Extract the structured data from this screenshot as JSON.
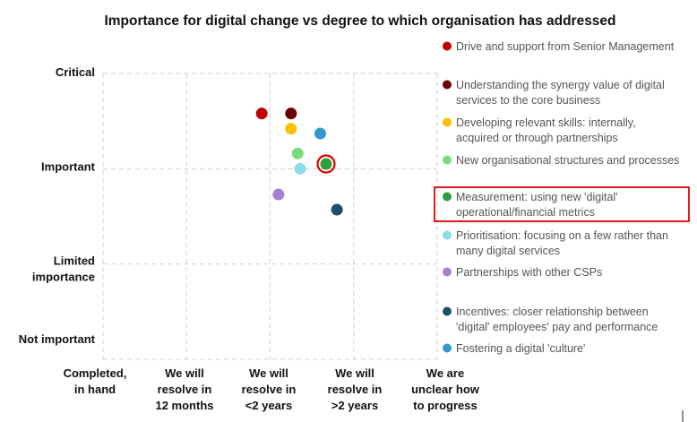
{
  "chart_data": {
    "type": "scatter",
    "title": "Importance for digital change vs degree to which organisation has addressed",
    "x_categories": [
      "Completed, in hand",
      "We will resolve in 12 months",
      "We will resolve in <2 years",
      "We will resolve in >2 years",
      "We are unclear how to progress"
    ],
    "y_categories": [
      "Not important",
      "Limited importance",
      "Important",
      "Critical"
    ],
    "xlim": [
      0,
      4
    ],
    "ylim": [
      0,
      3
    ],
    "grid": true,
    "legend_position": "right",
    "highlighted_series": "Measurement: using new 'digital' operational/financial metrics",
    "series": [
      {
        "name": "Drive and support from Senior Management",
        "color": "#c00000",
        "x": 1.9,
        "y": 2.58
      },
      {
        "name": "Understanding the synergy value of digital services to the core business",
        "color": "#6b0000",
        "x": 2.25,
        "y": 2.58
      },
      {
        "name": "Developing relevant skills: internally, acquired or through partnerships",
        "color": "#ffc000",
        "x": 2.25,
        "y": 2.42
      },
      {
        "name": "New organisational structures and processes",
        "color": "#77dd77",
        "x": 2.33,
        "y": 2.16
      },
      {
        "name": "Measurement: using new 'digital' operational/financial metrics",
        "color": "#2e9e3e",
        "x": 2.67,
        "y": 2.05
      },
      {
        "name": "Prioritisation: focusing on a few rather than many digital services",
        "color": "#88dde8",
        "x": 2.36,
        "y": 2.0
      },
      {
        "name": "Partnerships with other CSPs",
        "color": "#a57fd1",
        "x": 2.1,
        "y": 1.73
      },
      {
        "name": "Incentives: closer relationship between 'digital' employees' pay and performance",
        "color": "#1f4e6b",
        "x": 2.8,
        "y": 1.57
      },
      {
        "name": "Fostering a digital 'culture'",
        "color": "#3399cc",
        "x": 2.6,
        "y": 2.37
      }
    ]
  },
  "legend": {
    "items": [
      {
        "lines": [
          "Drive and support from Senior Management"
        ],
        "color": "#c00000"
      },
      {
        "lines": [
          "Understanding the synergy value of digital",
          "services to the core business"
        ],
        "color": "#6b0000"
      },
      {
        "lines": [
          "Developing relevant skills: internally,",
          "acquired or through partnerships"
        ],
        "color": "#ffc000"
      },
      {
        "lines": [
          "New organisational structures and processes"
        ],
        "color": "#77dd77"
      },
      {
        "lines": [
          "Measurement: using new 'digital'",
          "operational/financial metrics"
        ],
        "color": "#2e9e3e"
      },
      {
        "lines": [
          "Prioritisation: focusing on a few rather than",
          "many digital services"
        ],
        "color": "#88dde8"
      },
      {
        "lines": [
          "Partnerships with other CSPs"
        ],
        "color": "#a57fd1"
      },
      {
        "lines": [
          "Incentives: closer relationship between",
          "'digital' employees' pay and performance"
        ],
        "color": "#1f4e6b"
      },
      {
        "lines": [
          "Fostering a digital 'culture'"
        ],
        "color": "#3399cc"
      }
    ]
  },
  "axes": {
    "y_tick_labels": [
      {
        "lines": [
          "Critical"
        ]
      },
      {
        "lines": [
          "Important"
        ]
      },
      {
        "lines": [
          "Limited",
          "importance"
        ]
      },
      {
        "lines": [
          "Not important"
        ]
      }
    ],
    "x_tick_labels": [
      {
        "lines": [
          "Completed,",
          "in hand"
        ]
      },
      {
        "lines": [
          "We will",
          "resolve in",
          "12 months"
        ]
      },
      {
        "lines": [
          "We will",
          "resolve in",
          "<2 years"
        ]
      },
      {
        "lines": [
          "We will",
          "resolve in",
          ">2 years"
        ]
      },
      {
        "lines": [
          "We are",
          "unclear how",
          "to progress"
        ]
      }
    ]
  }
}
